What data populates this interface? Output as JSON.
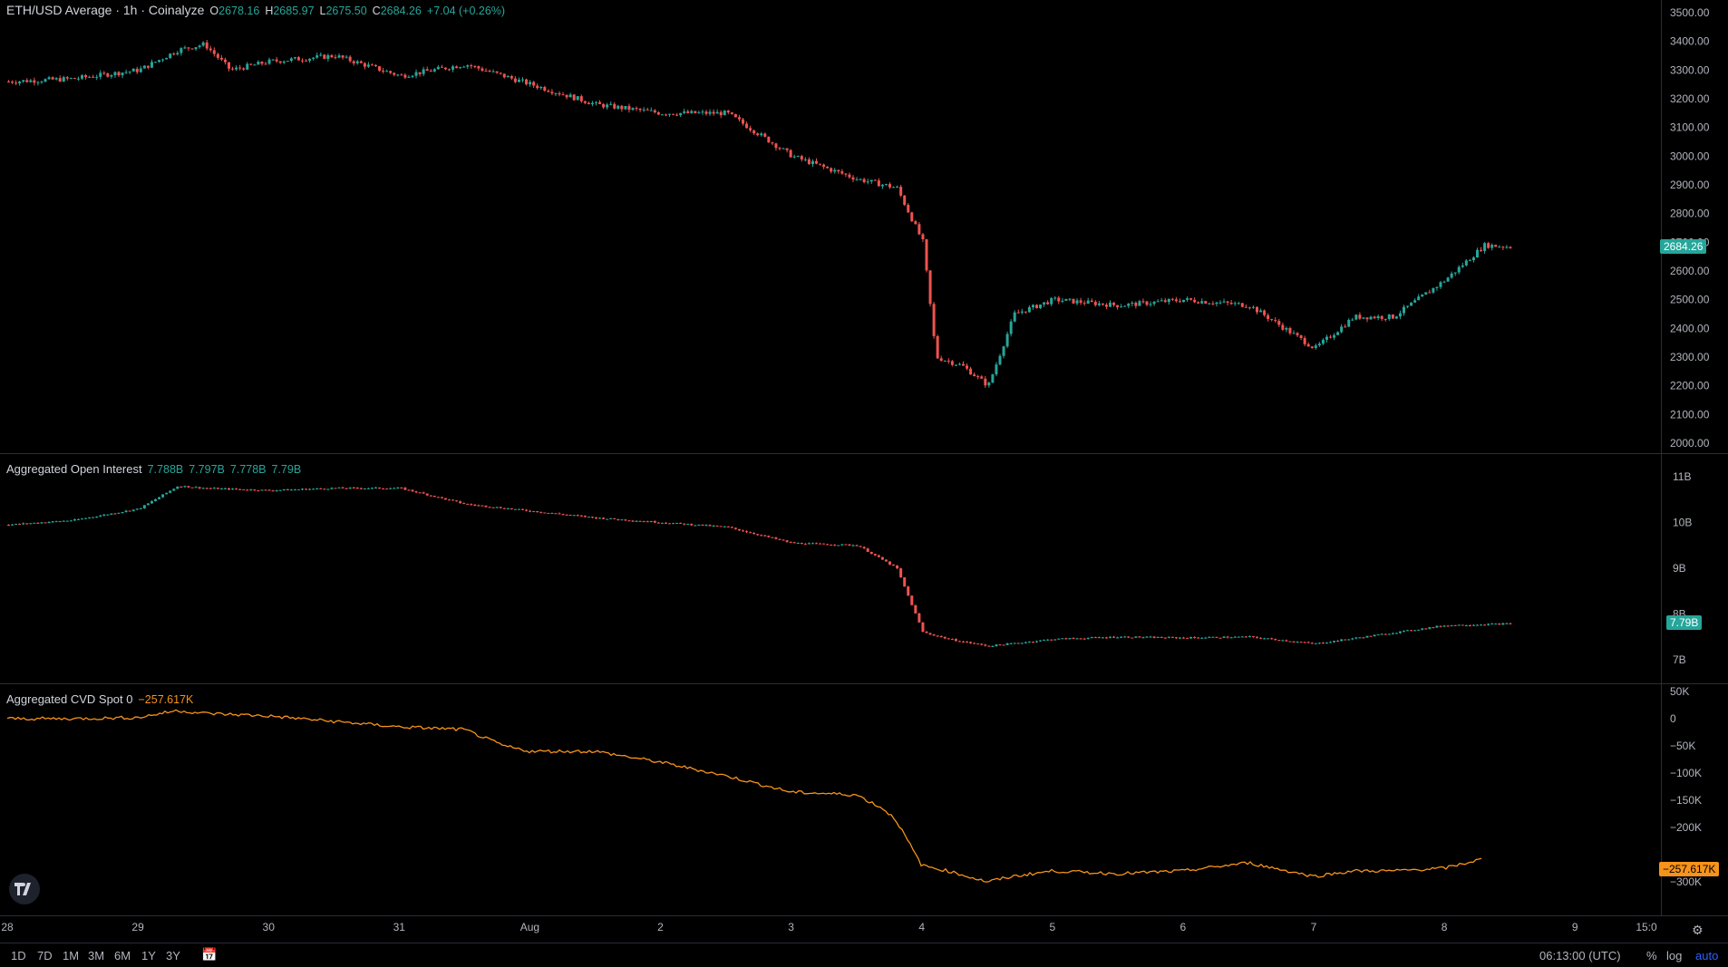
{
  "price_legend": {
    "title": "ETH/USD Average · 1h · Coinalyze",
    "o_label": "O",
    "o_value": "2678.16",
    "h_label": "H",
    "h_value": "2685.97",
    "l_label": "L",
    "l_value": "2675.50",
    "c_label": "C",
    "c_value": "2684.26",
    "change": "+7.04 (+0.26%)"
  },
  "oi_legend": {
    "title": "Aggregated Open Interest",
    "o_value": "7.788B",
    "h_value": "7.797B",
    "l_value": "7.778B",
    "c_value": "7.79B"
  },
  "cvd_legend": {
    "title": "Aggregated CVD Spot 0",
    "value": "−257.617K"
  },
  "price_tag": "2684.26",
  "oi_tag": "7.79B",
  "cvd_tag": "−257.617K",
  "time_axis": {
    "labels": [
      "28",
      "29",
      "30",
      "31",
      "Aug",
      "2",
      "3",
      "4",
      "5",
      "6",
      "7",
      "8",
      "9",
      "15:0"
    ]
  },
  "bottom_bar": {
    "ranges": [
      "1D",
      "7D",
      "1M",
      "3M",
      "6M",
      "1Y",
      "3Y"
    ],
    "timezone": "06:13:00 (UTC)",
    "percent_label": "%",
    "log_label": "log",
    "auto_label": "auto"
  },
  "colors": {
    "up": "#26a69a",
    "down": "#ef5350",
    "cvd": "#f7931a",
    "grid": "#2a2e39"
  },
  "icons": [
    "tradingview-logo-icon",
    "calendar-icon",
    "gear-icon"
  ],
  "chart_data": [
    {
      "type": "candlestick",
      "title": "ETH/USD Average · 1h · Coinalyze",
      "y_ticks": [
        "3500.00",
        "3400.00",
        "3300.00",
        "3200.00",
        "3100.00",
        "3000.00",
        "2900.00",
        "2800.00",
        "2700.00",
        "2600.00",
        "2500.00",
        "2400.00",
        "2300.00",
        "2200.00",
        "2100.00",
        "2000.00"
      ],
      "ylim": [
        2000,
        3500
      ],
      "x_labels": [
        "28",
        "29",
        "30",
        "31",
        "Aug",
        "2",
        "3",
        "4",
        "5",
        "6",
        "7",
        "8",
        "9"
      ],
      "close_path_by_day": {
        "days": [
          28,
          28.5,
          29,
          29.3,
          29.5,
          29.7,
          30,
          30.5,
          31,
          31.5,
          32,
          32.5,
          33,
          33.5,
          34,
          34.5,
          34.8,
          35,
          35.1,
          35.3,
          35.5,
          35.7,
          36,
          36.5,
          37,
          37.5,
          38,
          38.3,
          38.6,
          39,
          39.3,
          39.5
        ],
        "close": [
          3260,
          3270,
          3300,
          3370,
          3390,
          3300,
          3330,
          3350,
          3280,
          3320,
          3250,
          3180,
          3150,
          3150,
          3000,
          2920,
          2890,
          2700,
          2300,
          2270,
          2200,
          2450,
          2500,
          2480,
          2500,
          2480,
          2330,
          2440,
          2440,
          2570,
          2690,
          2684
        ]
      },
      "last_price": 2684.26
    },
    {
      "type": "candlestick",
      "title": "Aggregated Open Interest",
      "y_ticks": [
        "11B",
        "10B",
        "9B",
        "8B",
        "7B"
      ],
      "ylim": [
        7,
        11
      ],
      "close_path_by_day": {
        "days": [
          28,
          28.5,
          29,
          29.3,
          29.5,
          30,
          30.5,
          31,
          31.5,
          32,
          32.5,
          33,
          33.5,
          34,
          34.5,
          34.8,
          35,
          35.2,
          35.5,
          36,
          36.5,
          37,
          37.5,
          38,
          38.5,
          39,
          39.5
        ],
        "close": [
          9.95,
          10.05,
          10.3,
          10.8,
          10.75,
          10.7,
          10.75,
          10.75,
          10.4,
          10.25,
          10.1,
          10.0,
          9.9,
          9.55,
          9.5,
          9.0,
          7.6,
          7.45,
          7.3,
          7.45,
          7.5,
          7.48,
          7.5,
          7.35,
          7.55,
          7.75,
          7.79
        ]
      },
      "last_value": "7.79B"
    },
    {
      "type": "line",
      "title": "Aggregated CVD Spot 0",
      "y_ticks": [
        "50K",
        "0",
        "−50K",
        "−100K",
        "−150K",
        "−200K",
        "−300K"
      ],
      "ylim": [
        -320,
        50
      ],
      "x": [
        28,
        28.5,
        29,
        29.3,
        29.5,
        30,
        30.5,
        31,
        31.5,
        31.8,
        32,
        32.5,
        33,
        33.5,
        34,
        34.5,
        34.7,
        34.8,
        35,
        35.2,
        35.5,
        35.7,
        36,
        36.5,
        37,
        37.5,
        38,
        38.3,
        38.6,
        39,
        39.3
      ],
      "y": [
        0,
        0,
        2,
        15,
        10,
        5,
        -5,
        -15,
        -20,
        -50,
        -60,
        -60,
        -80,
        -105,
        -135,
        -140,
        -165,
        -185,
        -270,
        -280,
        -300,
        -290,
        -280,
        -285,
        -280,
        -265,
        -290,
        -280,
        -280,
        -275,
        -257.6
      ],
      "last_value": "−257.617K"
    }
  ]
}
